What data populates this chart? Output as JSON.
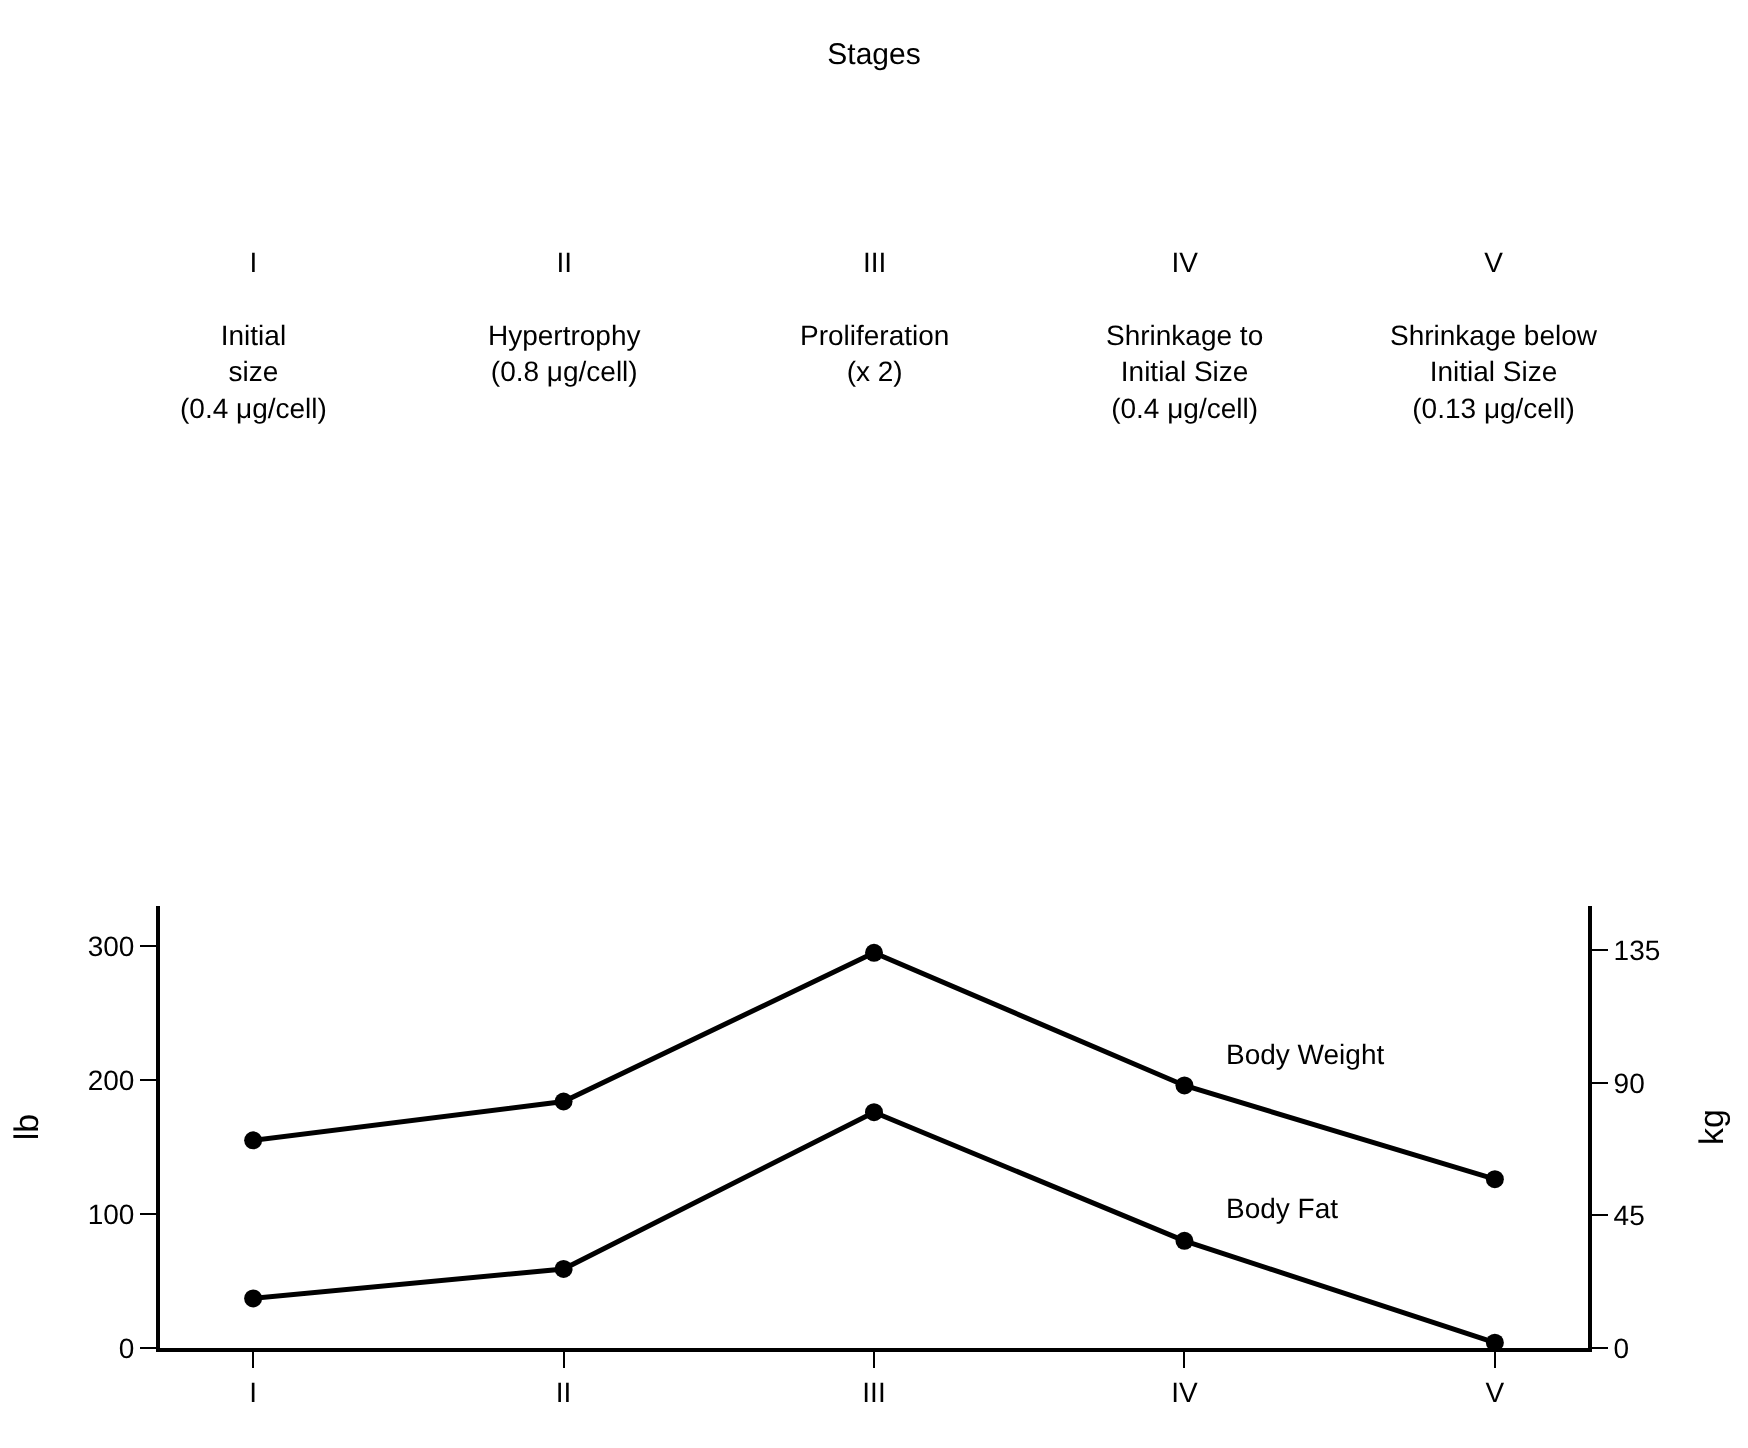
{
  "chart_data": {
    "type": "line",
    "title": "Stages",
    "annotations": [
      "I\n\nInitial\nsize\n(0.4 μg/cell)",
      "II\n\nHypertrophy\n(0.8 μg/cell)",
      "III\n\nProliferation\n(x 2)",
      "IV\n\nShrinkage to\nInitial Size\n(0.4 μg/cell)",
      "V\n\nShrinkage below\nInitial Size\n(0.13 μg/cell)"
    ],
    "categories": [
      "I",
      "II",
      "III",
      "IV",
      "V"
    ],
    "series": [
      {
        "name": "Body Weight",
        "color": "#000000",
        "values": [
          155,
          184,
          295,
          196,
          126
        ]
      },
      {
        "name": "Body Fat",
        "color": "#000000",
        "values": [
          37,
          59,
          176,
          80,
          4
        ]
      }
    ],
    "ylabel": "lb",
    "y2label": "kg",
    "ylim": [
      0,
      330
    ],
    "yticks": [
      0,
      100,
      200,
      300
    ],
    "y2lim": [
      0,
      150
    ],
    "y2ticks": [
      0,
      45,
      90,
      135
    ],
    "marker": "circle",
    "line_style": "solid",
    "grid": false,
    "legend": false
  }
}
